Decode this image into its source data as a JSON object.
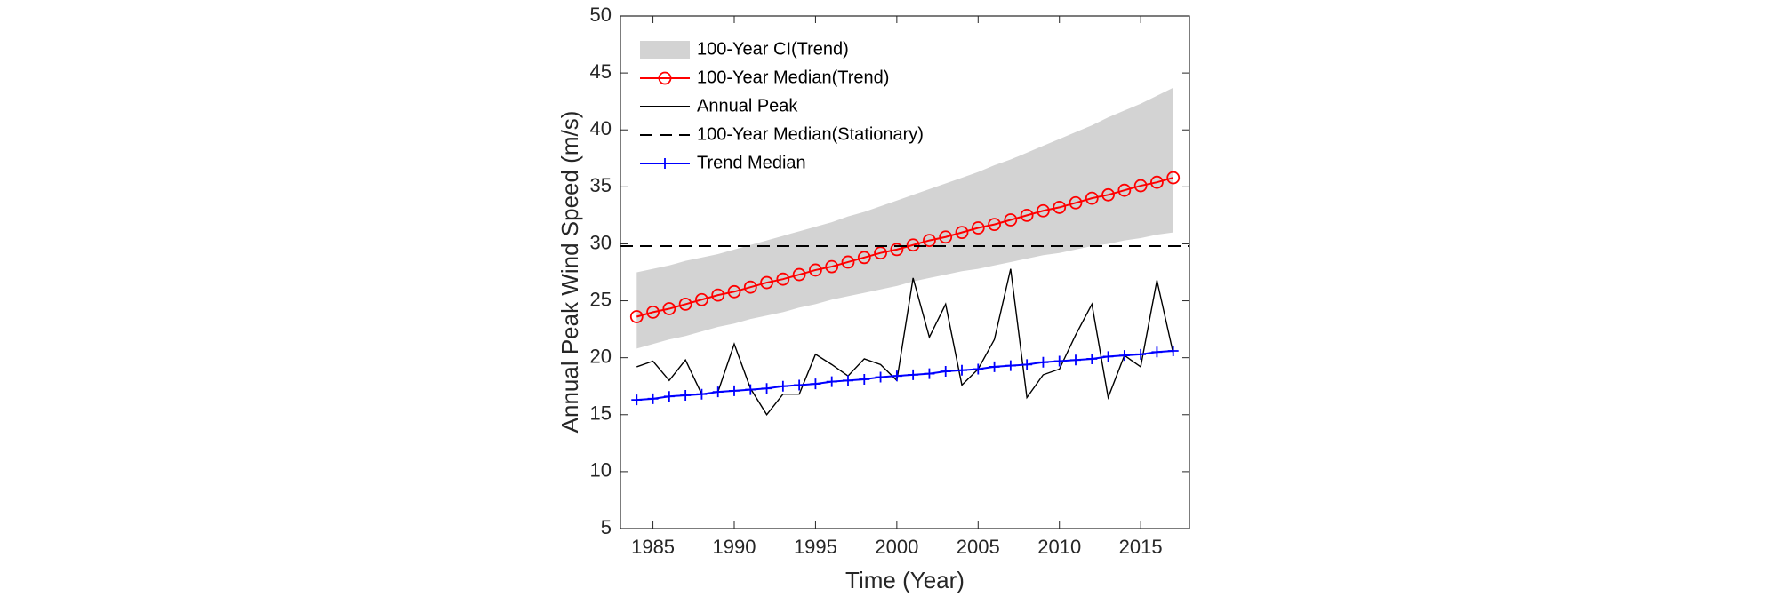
{
  "chart_data": {
    "type": "line",
    "x_label": "Time (Year)",
    "y_label": "Annual Peak Wind Speed (m/s)",
    "x": [
      1984,
      1985,
      1986,
      1987,
      1988,
      1989,
      1990,
      1991,
      1992,
      1993,
      1994,
      1995,
      1996,
      1997,
      1998,
      1999,
      2000,
      2001,
      2002,
      2003,
      2004,
      2005,
      2006,
      2007,
      2008,
      2009,
      2010,
      2011,
      2012,
      2013,
      2014,
      2015,
      2016,
      2017
    ],
    "xlim": [
      1983,
      2018
    ],
    "xticks": [
      1985,
      1990,
      1995,
      2000,
      2005,
      2010,
      2015
    ],
    "ylim": [
      5,
      50
    ],
    "yticks": [
      5,
      10,
      15,
      20,
      25,
      30,
      35,
      40,
      45,
      50
    ],
    "legend": "upper left",
    "series": [
      {
        "name": "100-Year CI(Trend)",
        "color": "#d3d3d3",
        "kind": "band",
        "upper": [
          27.5,
          27.8,
          28.1,
          28.5,
          28.8,
          29.1,
          29.5,
          29.9,
          30.3,
          30.7,
          31.1,
          31.5,
          31.9,
          32.4,
          32.8,
          33.3,
          33.8,
          34.3,
          34.8,
          35.3,
          35.8,
          36.3,
          36.9,
          37.4,
          38.0,
          38.6,
          39.2,
          39.8,
          40.4,
          41.1,
          41.7,
          42.3,
          43.0,
          43.7
        ],
        "lower": [
          20.8,
          21.2,
          21.6,
          21.9,
          22.3,
          22.7,
          23.0,
          23.4,
          23.7,
          24.0,
          24.4,
          24.7,
          25.1,
          25.4,
          25.7,
          26.0,
          26.3,
          26.7,
          27.0,
          27.3,
          27.6,
          27.8,
          28.1,
          28.4,
          28.7,
          29.0,
          29.2,
          29.5,
          29.8,
          30.0,
          30.3,
          30.5,
          30.8,
          31.0
        ]
      },
      {
        "name": "100-Year Median(Trend)",
        "color": "#ff0000",
        "marker": "circle",
        "values": [
          23.6,
          24.0,
          24.3,
          24.7,
          25.1,
          25.5,
          25.8,
          26.2,
          26.6,
          26.9,
          27.3,
          27.7,
          28.0,
          28.4,
          28.8,
          29.2,
          29.5,
          29.9,
          30.3,
          30.6,
          31.0,
          31.4,
          31.7,
          32.1,
          32.5,
          32.9,
          33.2,
          33.6,
          34.0,
          34.3,
          34.7,
          35.1,
          35.4,
          35.8
        ]
      },
      {
        "name": "Annual Peak",
        "color": "#000000",
        "values": [
          19.2,
          19.7,
          18.0,
          19.8,
          16.8,
          17.0,
          21.2,
          17.3,
          15.0,
          16.8,
          16.8,
          20.3,
          19.4,
          18.4,
          19.9,
          19.4,
          18.0,
          27.0,
          21.8,
          24.7,
          17.6,
          19.0,
          21.6,
          27.8,
          16.5,
          18.5,
          19.0,
          22.0,
          24.7,
          16.5,
          20.2,
          19.2,
          26.8,
          20.4
        ]
      },
      {
        "name": "100-Year Median(Stationary)",
        "color": "#000000",
        "kind": "hline",
        "dash": true,
        "value": 29.8
      },
      {
        "name": "Trend Median",
        "color": "#0000ff",
        "marker": "plus",
        "values": [
          16.3,
          16.4,
          16.6,
          16.7,
          16.8,
          17.0,
          17.1,
          17.2,
          17.3,
          17.5,
          17.6,
          17.7,
          17.9,
          18.0,
          18.1,
          18.3,
          18.4,
          18.5,
          18.6,
          18.8,
          18.9,
          19.0,
          19.2,
          19.3,
          19.4,
          19.6,
          19.7,
          19.8,
          19.9,
          20.1,
          20.2,
          20.3,
          20.5,
          20.6
        ]
      }
    ]
  }
}
